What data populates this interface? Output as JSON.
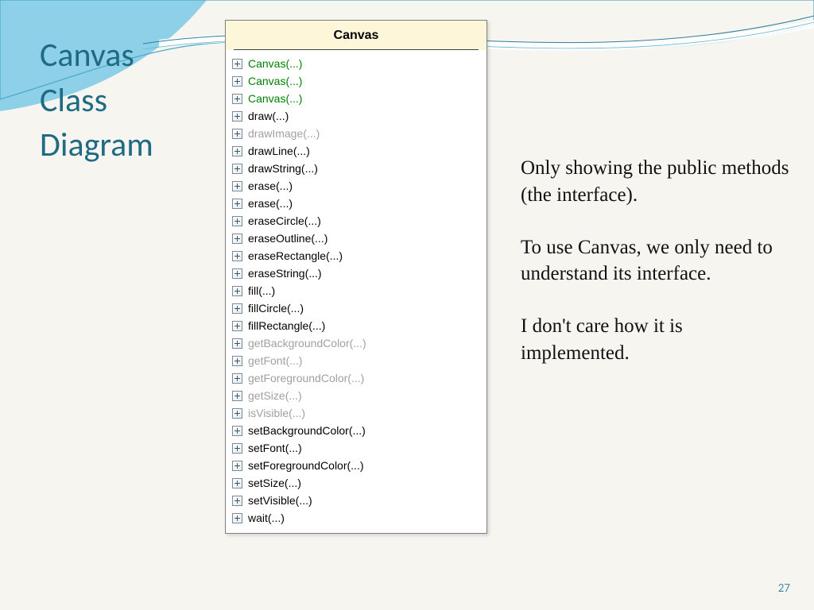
{
  "slide": {
    "title_l1": "Canvas",
    "title_l2": "Class",
    "title_l3": "Diagram",
    "page_number": "27"
  },
  "uml": {
    "class_name": "Canvas",
    "methods": [
      {
        "label": "Canvas(...)",
        "style": "constructor"
      },
      {
        "label": "Canvas(...)",
        "style": "constructor"
      },
      {
        "label": "Canvas(...)",
        "style": "constructor"
      },
      {
        "label": "draw(...)",
        "style": "normal"
      },
      {
        "label": "drawImage(...)",
        "style": "dim"
      },
      {
        "label": "drawLine(...)",
        "style": "normal"
      },
      {
        "label": "drawString(...)",
        "style": "normal"
      },
      {
        "label": "erase(...)",
        "style": "normal"
      },
      {
        "label": "erase(...)",
        "style": "normal"
      },
      {
        "label": "eraseCircle(...)",
        "style": "normal"
      },
      {
        "label": "eraseOutline(...)",
        "style": "normal"
      },
      {
        "label": "eraseRectangle(...)",
        "style": "normal"
      },
      {
        "label": "eraseString(...)",
        "style": "normal"
      },
      {
        "label": "fill(...)",
        "style": "normal"
      },
      {
        "label": "fillCircle(...)",
        "style": "normal"
      },
      {
        "label": "fillRectangle(...)",
        "style": "normal"
      },
      {
        "label": "getBackgroundColor(...)",
        "style": "dim"
      },
      {
        "label": "getFont(...)",
        "style": "dim"
      },
      {
        "label": "getForegroundColor(...)",
        "style": "dim"
      },
      {
        "label": "getSize(...)",
        "style": "dim"
      },
      {
        "label": "isVisible(...)",
        "style": "dim"
      },
      {
        "label": "setBackgroundColor(...)",
        "style": "normal"
      },
      {
        "label": "setFont(...)",
        "style": "normal"
      },
      {
        "label": "setForegroundColor(...)",
        "style": "normal"
      },
      {
        "label": "setSize(...)",
        "style": "normal"
      },
      {
        "label": "setVisible(...)",
        "style": "normal"
      },
      {
        "label": "wait(...)",
        "style": "normal"
      }
    ]
  },
  "description": {
    "p1": "Only showing the public methods (the interface).",
    "p2": "To use Canvas, we only need to understand its interface.",
    "p3": "I don't care how it is implemented."
  },
  "colors": {
    "title": "#1f6b84",
    "constructor": "#008000",
    "dim": "#a0a0a0",
    "wave1": "#8ed0e8",
    "wave2": "#4aa8c8",
    "header_bg": "#fdf6d9"
  }
}
